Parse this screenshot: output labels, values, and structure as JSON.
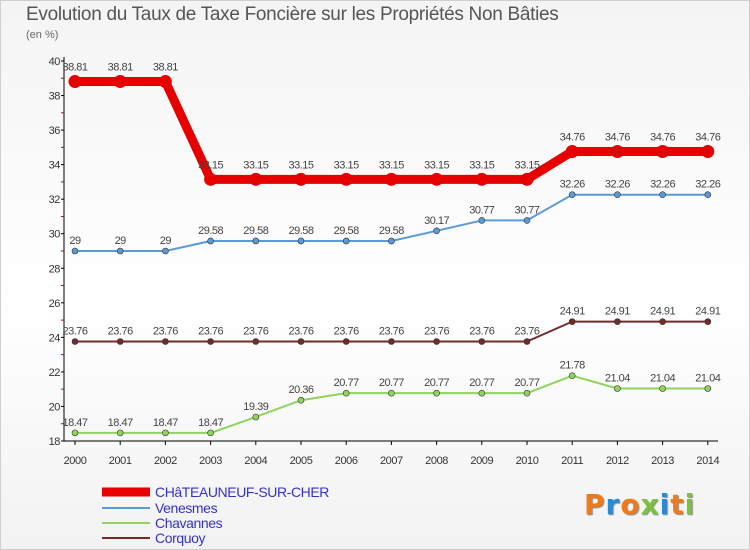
{
  "header": {
    "title": "Evolution du Taux de Taxe Foncière sur les Propriétés Non Bâties",
    "subtitle": "(en %)"
  },
  "logo": {
    "text": "Proxiti",
    "colors": [
      "#ee7a1a",
      "#2a8ad4",
      "#ee7a1a",
      "#7cc040",
      "#2a8ad4",
      "#ee7a1a",
      "#7cc040"
    ]
  },
  "chart_data": {
    "type": "line",
    "title": "Evolution du Taux de Taxe Foncière sur les Propriétés Non Bâties",
    "ylabel": "(en %)",
    "xlabel": "",
    "x": [
      "2000",
      "2001",
      "2002",
      "2003",
      "2004",
      "2005",
      "2006",
      "2007",
      "2008",
      "2009",
      "2010",
      "2011",
      "2012",
      "2013",
      "2014"
    ],
    "ylim": [
      18,
      40
    ],
    "yticks": [
      "18",
      "20",
      "22",
      "24",
      "26",
      "28",
      "30",
      "32",
      "34",
      "36",
      "38",
      "40"
    ],
    "legend_position": "bottom-left",
    "series": [
      {
        "name": "CHâTEAUNEUF-SUR-CHER",
        "color": "#e60000",
        "width": 9,
        "values": [
          38.81,
          38.81,
          38.81,
          33.15,
          33.15,
          33.15,
          33.15,
          33.15,
          33.15,
          33.15,
          33.15,
          34.76,
          34.76,
          34.76,
          34.76
        ],
        "labels": [
          "38.81",
          "38.81",
          "38.81",
          "33.15",
          "33.15",
          "33.15",
          "33.15",
          "33.15",
          "33.15",
          "33.15",
          "33.15",
          "34.76",
          "34.76",
          "34.76",
          "34.76"
        ]
      },
      {
        "name": "Venesmes",
        "color": "#5b9bd5",
        "width": 2,
        "values": [
          29,
          29,
          29,
          29.58,
          29.58,
          29.58,
          29.58,
          29.58,
          30.17,
          30.77,
          30.77,
          32.26,
          32.26,
          32.26,
          32.26
        ],
        "labels": [
          "29",
          "29",
          "29",
          "29.58",
          "29.58",
          "29.58",
          "29.58",
          "29.58",
          "30.17",
          "30.77",
          "30.77",
          "32.26",
          "32.26",
          "32.26",
          "32.26"
        ]
      },
      {
        "name": "Chavannes",
        "color": "#8fd45f",
        "width": 2,
        "values": [
          18.47,
          18.47,
          18.47,
          18.47,
          19.39,
          20.36,
          20.77,
          20.77,
          20.77,
          20.77,
          20.77,
          21.78,
          21.04,
          21.04,
          21.04
        ],
        "labels": [
          "18.47",
          "18.47",
          "18.47",
          "18.47",
          "19.39",
          "20.36",
          "20.77",
          "20.77",
          "20.77",
          "20.77",
          "20.77",
          "21.78",
          "21.04",
          "21.04",
          "21.04"
        ]
      },
      {
        "name": "Corquoy",
        "color": "#722b2b",
        "width": 2,
        "values": [
          23.76,
          23.76,
          23.76,
          23.76,
          23.76,
          23.76,
          23.76,
          23.76,
          23.76,
          23.76,
          23.76,
          24.91,
          24.91,
          24.91,
          24.91
        ],
        "labels": [
          "23.76",
          "23.76",
          "23.76",
          "23.76",
          "23.76",
          "23.76",
          "23.76",
          "23.76",
          "23.76",
          "23.76",
          "23.76",
          "24.91",
          "24.91",
          "24.91",
          "24.91"
        ]
      }
    ],
    "legend_text_colors": [
      "#3333cc",
      "#3333cc",
      "#3333cc",
      "#3333cc"
    ]
  }
}
